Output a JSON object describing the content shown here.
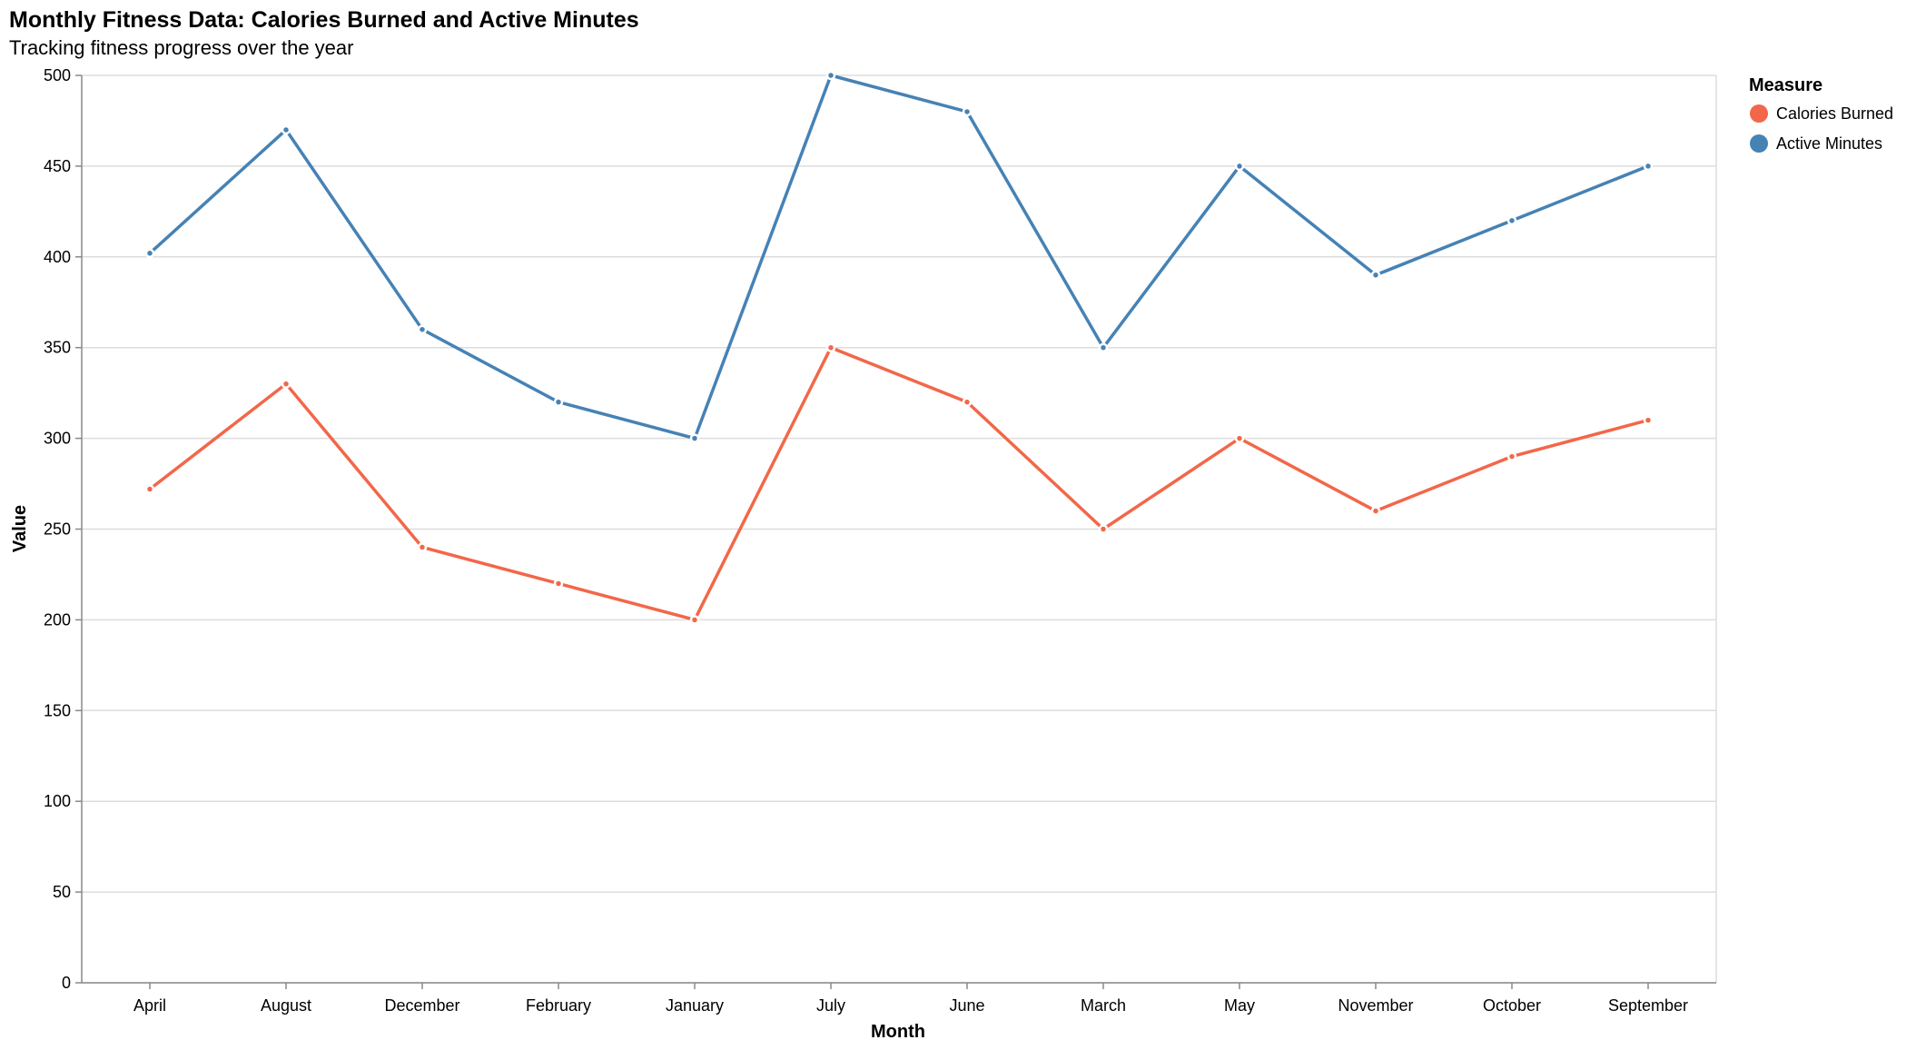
{
  "chart_data": {
    "type": "line",
    "title": "Monthly Fitness Data: Calories Burned and Active Minutes",
    "subtitle": "Tracking fitness progress over the year",
    "xlabel": "Month",
    "ylabel": "Value",
    "ylim": [
      0,
      500
    ],
    "yticks": [
      0,
      50,
      100,
      150,
      200,
      250,
      300,
      350,
      400,
      450,
      500
    ],
    "grid": true,
    "legend": {
      "title": "Measure",
      "placement": "top-right"
    },
    "categories": [
      "April",
      "August",
      "December",
      "February",
      "January",
      "July",
      "June",
      "March",
      "May",
      "November",
      "October",
      "September"
    ],
    "series": [
      {
        "name": "Calories Burned",
        "color": "#f26749",
        "values": [
          272,
          330,
          240,
          220,
          200,
          350,
          320,
          250,
          300,
          260,
          290,
          310
        ]
      },
      {
        "name": "Active Minutes",
        "color": "#4682b4",
        "values": [
          402,
          470,
          360,
          320,
          300,
          500,
          480,
          350,
          450,
          390,
          420,
          450
        ]
      }
    ]
  },
  "colors": {
    "grid": "#dddddd",
    "axis": "#888888",
    "point_outline": "#ffffff"
  }
}
